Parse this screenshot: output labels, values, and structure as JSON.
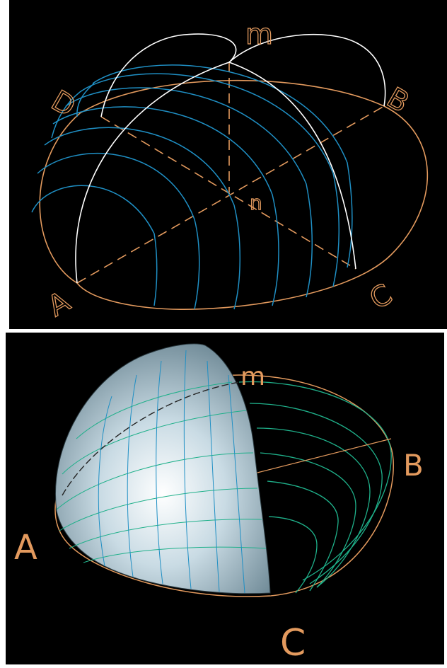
{
  "top_figure": {
    "labels": {
      "a": "A",
      "b": "B",
      "c": "C",
      "d": "D",
      "m": "m",
      "n": "n"
    },
    "colors": {
      "background": "#000000",
      "outline": "#e39a5e",
      "meridian": "#ffffff",
      "grid": "#1f8fc4"
    }
  },
  "bottom_figure": {
    "labels": {
      "a": "A",
      "b": "B",
      "c": "C",
      "m": "m"
    },
    "colors": {
      "background": "#000000",
      "outline": "#e39a5e",
      "grid_lines": "#1fb08a",
      "surface": "#c9dbe4",
      "surface_highlight": "#ffffff"
    }
  }
}
